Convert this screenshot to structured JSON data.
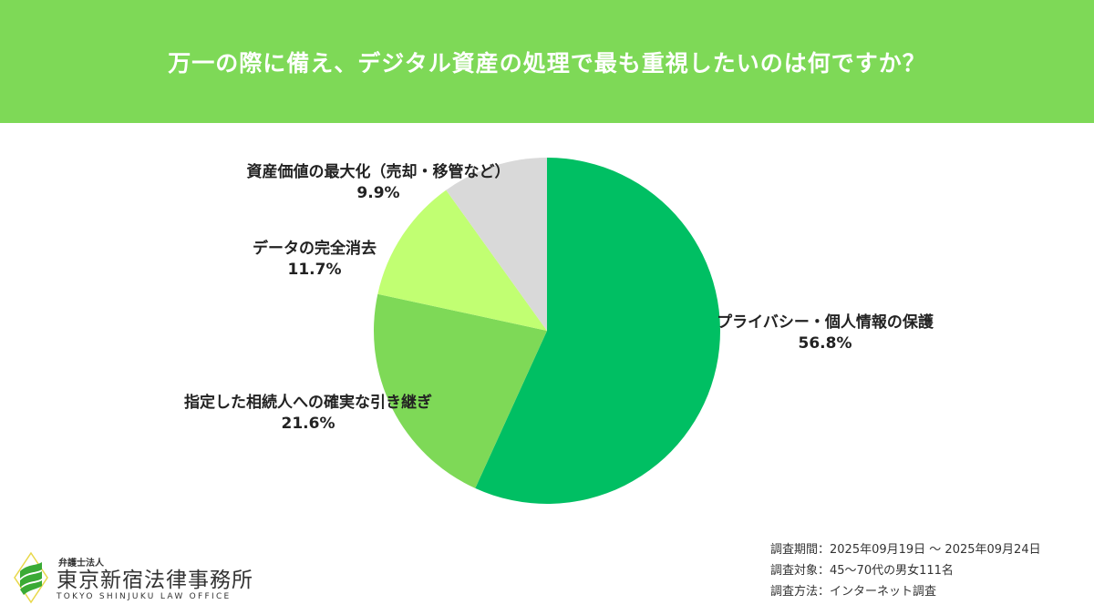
{
  "title": "万一の際に備え、デジタル資産の処理で最も重視したいのは何ですか？",
  "chart_data": {
    "type": "pie",
    "slices": [
      {
        "label": "プライバシー・個人情報の保護",
        "value": 56.8,
        "display": "56.8%",
        "color": "#00bf63"
      },
      {
        "label": "指定した相続人への確実な引き継ぎ",
        "value": 21.6,
        "display": "21.6%",
        "color": "#7ed957"
      },
      {
        "label": "データの完全消去",
        "value": 11.7,
        "display": "11.7%",
        "color": "#c1ff72"
      },
      {
        "label": "資産価値の最大化（売却・移管など）",
        "value": 9.9,
        "display": "9.9%",
        "color": "#d9d9d9"
      }
    ],
    "start": "top",
    "direction": "clockwise",
    "legend": "none"
  },
  "notes": [
    "調査期間：2025年09月19日 〜 2025年09月24日",
    "調査対象：45〜70代の男女111名",
    "調査方法：インターネット調査"
  ],
  "logo": {
    "sub": "弁護士法人",
    "name": "東京新宿法律事務所",
    "en": "TOKYO SHINJUKU LAW OFFICE"
  },
  "colors": {
    "header": "#7ed957"
  }
}
